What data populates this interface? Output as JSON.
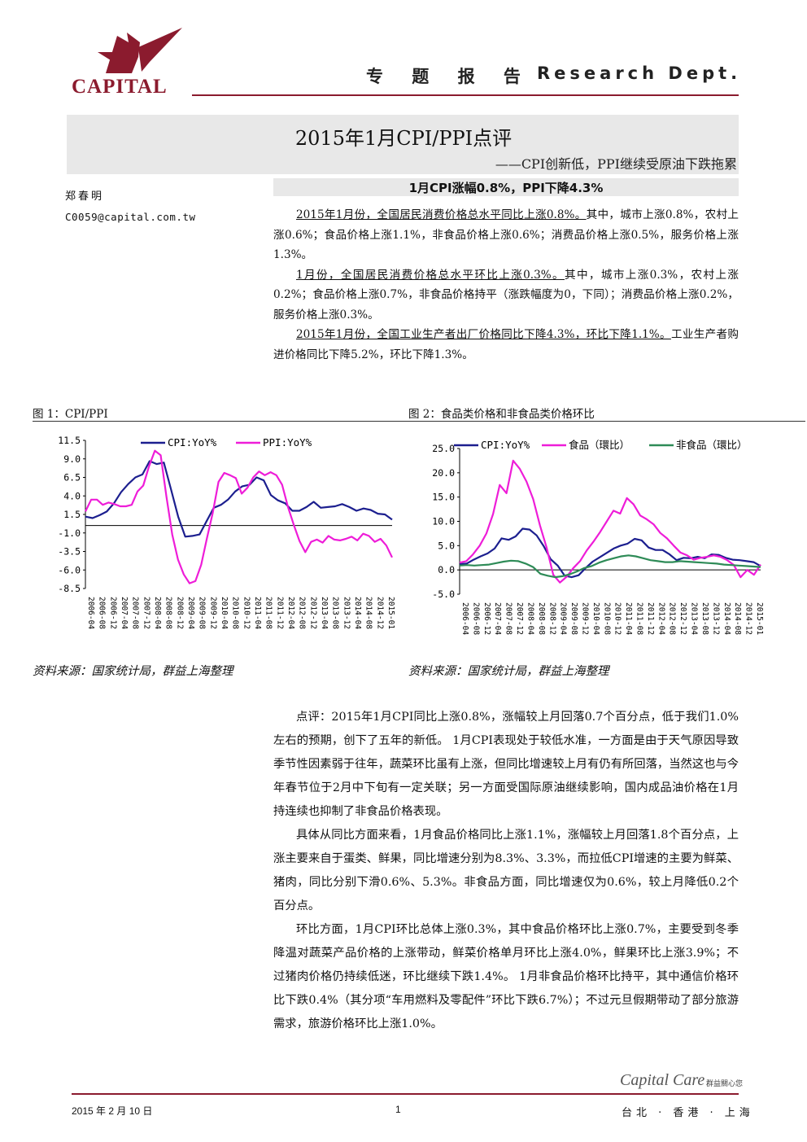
{
  "header": {
    "logo_text": "CAPITAL",
    "report_type": "专 题 报 告",
    "dept": "Research Dept.",
    "accent_color": "#8b1b2e"
  },
  "title": {
    "main": "2015年1月CPI/PPI点评",
    "subtitle": "——CPI创新低，PPI继续受原油下跌拖累"
  },
  "author": {
    "name": "郑春明",
    "email": "C0059@capital.com.tw"
  },
  "highlight": "1月CPI涨幅0.8%，PPI下降4.3%",
  "summary": [
    {
      "u": "2015年1月份，全国居民消费价格总水平同比上涨0.8%。",
      "rest": "其中，城市上涨0.8%，农村上涨0.6%；食品价格上涨1.1%，非食品价格上涨0.6%；消费品价格上涨0.5%，服务价格上涨1.3%。"
    },
    {
      "u": "1月份，全国居民消费价格总水平环比上涨0.3%。",
      "rest": "其中，城市上涨0.3%，农村上涨0.2%；食品价格上涨0.7%，非食品价格持平（涨跌幅度为0，下同）；消费品价格上涨0.2%，服务价格上涨0.3%。"
    },
    {
      "u": "2015年1月份，全国工业生产者出厂价格同比下降4.3%，环比下降1.1%。",
      "rest": "工业生产者购进价格同比下降5.2%，环比下降1.3%。"
    }
  ],
  "figures": {
    "fig1_title": "图 1：CPI/PPI",
    "fig2_title": "图 2：食品类价格和非食品类价格环比",
    "source": "资料来源：国家统计局，群益上海整理"
  },
  "chart_data": [
    {
      "type": "line",
      "title": "",
      "legend": "top",
      "series_colors": [
        "#1c1f8f",
        "#ee1dd8"
      ],
      "yticks": [
        "11.5",
        "9.0",
        "6.5",
        "4.0",
        "1.5",
        "-1.0",
        "-3.5",
        "-6.0",
        "-8.5"
      ],
      "ylim": [
        -8.5,
        11.5
      ],
      "x_range": [
        "2006-04",
        "2015-01"
      ],
      "xticks": [
        "2006-04",
        "2006-08",
        "2006-12",
        "2007-04",
        "2007-08",
        "2007-12",
        "2008-04",
        "2008-08",
        "2008-12",
        "2009-04",
        "2009-08",
        "2009-12",
        "2010-04",
        "2010-08",
        "2010-12",
        "2011-04",
        "2011-08",
        "2011-12",
        "2012-04",
        "2012-08",
        "2012-12",
        "2013-04",
        "2013-08",
        "2013-12",
        "2014-04",
        "2014-08",
        "2014-12",
        "2015-01"
      ],
      "series": [
        {
          "name": "CPI:YoY%",
          "values": [
            1.2,
            1.0,
            1.4,
            1.9,
            3.0,
            4.5,
            5.6,
            6.5,
            6.9,
            8.7,
            8.3,
            8.5,
            4.9,
            1.2,
            -1.5,
            -1.4,
            -1.2,
            0.6,
            2.4,
            2.8,
            3.5,
            4.6,
            5.3,
            5.5,
            6.5,
            6.1,
            4.1,
            3.4,
            3.0,
            2.0,
            2.0,
            2.5,
            3.2,
            2.4,
            2.5,
            2.6,
            2.9,
            2.5,
            2.0,
            2.3,
            2.1,
            1.6,
            1.5,
            0.8
          ]
        },
        {
          "name": "PPI:YoY%",
          "values": [
            1.9,
            3.5,
            3.5,
            2.8,
            3.1,
            2.9,
            2.6,
            2.6,
            2.8,
            4.6,
            5.4,
            8.0,
            10.1,
            9.5,
            3.9,
            -1.2,
            -4.6,
            -6.6,
            -7.8,
            -7.5,
            -5.3,
            -1.7,
            1.7,
            5.9,
            7.1,
            6.8,
            6.4,
            4.3,
            5.1,
            6.5,
            7.3,
            6.8,
            7.2,
            6.8,
            5.5,
            2.5,
            0.1,
            -2.1,
            -3.6,
            -2.2,
            -1.9,
            -2.3,
            -1.4,
            -1.9,
            -2.0,
            -1.8,
            -1.5,
            -2.0,
            -1.1,
            -1.4,
            -2.2,
            -1.8,
            -2.7,
            -4.3
          ]
        }
      ]
    },
    {
      "type": "line",
      "title": "",
      "legend": "top",
      "series_colors": [
        "#1c1f8f",
        "#ee1dd8",
        "#2e8b57"
      ],
      "yticks": [
        "25.0",
        "20.0",
        "15.0",
        "10.0",
        "5.0",
        "0.0",
        "-5.0"
      ],
      "ylim": [
        -5,
        25
      ],
      "x_range": [
        "2006-04",
        "2015-01"
      ],
      "series": [
        {
          "name": "CPI:YoY%",
          "values": [
            1.2,
            1.3,
            2.1,
            2.8,
            3.4,
            4.4,
            6.5,
            6.2,
            6.9,
            8.5,
            8.3,
            7.1,
            4.9,
            2.2,
            0.9,
            -1.2,
            -1.5,
            -1.1,
            0.4,
            1.7,
            2.6,
            3.5,
            4.4,
            5.0,
            5.4,
            6.4,
            6.1,
            4.6,
            4.1,
            4.1,
            3.2,
            2.0,
            2.5,
            2.4,
            2.7,
            2.4,
            3.2,
            3.1,
            2.5,
            2.1,
            2.0,
            1.8,
            1.6,
            0.8
          ]
        },
        {
          "name": "食品（環比）",
          "values": [
            1.5,
            1.8,
            3.2,
            5.0,
            7.5,
            11.5,
            17.5,
            15.8,
            22.5,
            20.8,
            18.2,
            14.6,
            9.2,
            4.6,
            -1.0,
            -2.6,
            -1.4,
            0.4,
            1.8,
            4.0,
            5.8,
            7.8,
            10.0,
            12.2,
            11.6,
            14.8,
            13.5,
            11.2,
            10.4,
            9.4,
            7.6,
            6.5,
            5.0,
            3.6,
            3.0,
            2.1,
            2.5,
            2.7,
            3.0,
            2.7,
            2.0,
            1.0,
            -1.5,
            0.0,
            -1.0,
            1.1
          ]
        },
        {
          "name": "非食品（環比）",
          "values": [
            0.9,
            1.0,
            0.9,
            1.0,
            1.1,
            1.4,
            1.7,
            1.9,
            1.8,
            1.3,
            0.6,
            -0.8,
            -1.2,
            -1.5,
            -1.3,
            -0.9,
            -0.3,
            0.4,
            0.8,
            1.5,
            2.0,
            2.4,
            2.8,
            3.0,
            2.8,
            2.4,
            2.0,
            1.8,
            1.6,
            1.6,
            1.8,
            1.7,
            1.6,
            1.5,
            1.4,
            1.3,
            1.1,
            1.0,
            0.9,
            0.8,
            0.7,
            0.6
          ]
        }
      ]
    }
  ],
  "comment": [
    "点评：2015年1月CPI同比上涨0.8%，涨幅较上月回落0.7个百分点，低于我们1.0%左右的预期，创下了五年的新低。 1月CPI表现处于较低水准，一方面是由于天气原因导致季节性因素弱于往年，蔬菜环比虽有上涨，但同比增速较上月有仍有所回落，当然这也与今年春节位于2月中下旬有一定关联；另一方面受国际原油继续影响，国内成品油价格在1月持连续也抑制了非食品价格表现。",
    "具体从同比方面来看，1月食品价格同比上涨1.1%，涨幅较上月回落1.8个百分点，上涨主要来自于蛋类、鲜果，同比增速分别为8.3%、3.3%，而拉低CPI增速的主要为鲜菜、猪肉，同比分别下滑0.6%、5.3%。非食品方面，同比增速仅为0.6%，较上月降低0.2个百分点。",
    "环比方面，1月CPI环比总体上涨0.3%，其中食品价格环比上涨0.7%，主要受到冬季降温对蔬菜产品价格的上涨带动，鲜菜价格单月环比上涨4.0%，鲜果环比上涨3.9%；不过猪肉价格仍持续低迷，环比继续下跌1.4%。 1月非食品价格环比持平，其中通信价格环比下跌0.4%（其分项“车用燃料及零配件”环比下跌6.7%）；不过元旦假期带动了部分旅游需求，旅游价格环比上涨1.0%。"
  ],
  "footer": {
    "date": "2015 年 2 月 10 日",
    "page": "1",
    "brand": "Capital Care",
    "brand_sub": "群益關心您",
    "cities": "台北 · 香港 · 上海"
  }
}
